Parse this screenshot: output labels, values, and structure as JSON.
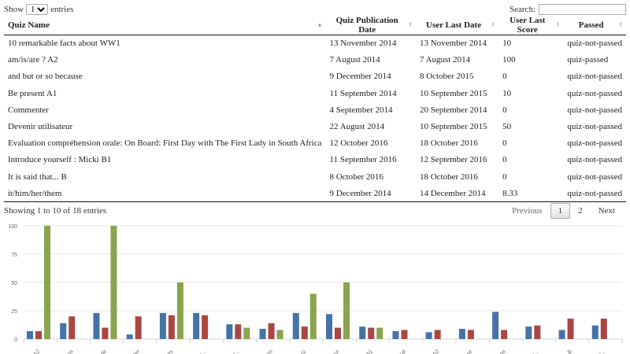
{
  "controls": {
    "show_label": "Show",
    "entries_label": "entries",
    "page_length": "10",
    "search_label": "Search:",
    "search_value": "",
    "search_placeholder": ""
  },
  "table": {
    "columns": [
      {
        "label": "Quiz Name",
        "sort": "asc"
      },
      {
        "label": "Quiz Publication Date",
        "sort": "both"
      },
      {
        "label": "User Last Date",
        "sort": "both"
      },
      {
        "label": "User Last Score",
        "sort": "both"
      },
      {
        "label": "Passed",
        "sort": "both"
      }
    ],
    "rows": [
      [
        "10 remarkable facts about WW1",
        "13 November 2014",
        "13 November 2014",
        "10",
        "quiz-not-passed"
      ],
      [
        "am/is/are ? A2",
        "7 August 2014",
        "7 August 2014",
        "100",
        "quiz-passed"
      ],
      [
        "and but or so because",
        "9 December 2014",
        "8 October 2015",
        "0",
        "quiz-not-passed"
      ],
      [
        "Be present A1",
        "11 September 2014",
        "10 September 2015",
        "10",
        "quiz-not-passed"
      ],
      [
        "Commenter",
        "4 September 2014",
        "20 September 2014",
        "0",
        "quiz-not-passed"
      ],
      [
        "Devenir utilisateur",
        "22 August 2014",
        "10 September 2015",
        "50",
        "quiz-not-passed"
      ],
      [
        "Evaluation compréhension orale: On Board: First Day with The First Lady in South Africa",
        "12 October 2016",
        "18 October 2016",
        "0",
        "quiz-not-passed"
      ],
      [
        "Introduce yourself : Micki B1",
        "11 September 2016",
        "12 September 2016",
        "0",
        "quiz-not-passed"
      ],
      [
        "It is said that... B",
        "8 October 2016",
        "18 October 2016",
        "0",
        "quiz-not-passed"
      ],
      [
        "it/him/her/them",
        "9 December 2014",
        "14 December 2014",
        "8.33",
        "quiz-not-passed"
      ]
    ]
  },
  "footer": {
    "info": "Showing 1 to 10 of 18 entries",
    "pagination": {
      "previous": "Previous",
      "pages": [
        "1",
        "2"
      ],
      "current": "1",
      "next": "Next"
    }
  },
  "chart_data": {
    "type": "bar",
    "title": "",
    "xlabel": "",
    "ylabel": "",
    "ylim": [
      0,
      100
    ],
    "yticks": [
      0,
      25,
      50,
      75,
      100
    ],
    "grid": true,
    "legend": "none",
    "categories": [
      "...? A2",
      "...tions",
      "...saude",
      "...enter",
      "...cours",
      "...tec...",
      "...abo...",
      "...them",
      "...Quiz",
      "...sateur",
      "...nt A1",
      "...tural",
      "...do A2",
      "...cause",
      "...tags",
      "...tick...",
      "...t... B",
      "...emi..."
    ],
    "series": [
      {
        "name": "series-blue",
        "color": "#4572a7",
        "values": [
          7,
          14,
          23,
          4,
          23,
          23,
          13,
          9,
          23,
          22,
          11,
          7,
          6,
          9,
          24,
          11,
          8,
          12
        ]
      },
      {
        "name": "series-red",
        "color": "#aa4643",
        "values": [
          7,
          20,
          10,
          20,
          21,
          21,
          13,
          14,
          11,
          10,
          10,
          8,
          8,
          8,
          8,
          12,
          18,
          18
        ]
      },
      {
        "name": "series-green",
        "color": "#89a54e",
        "values": [
          100,
          0,
          100,
          0,
          50,
          0,
          10,
          8,
          40,
          50,
          10,
          0,
          0,
          0,
          0,
          0,
          0,
          0
        ]
      }
    ]
  }
}
